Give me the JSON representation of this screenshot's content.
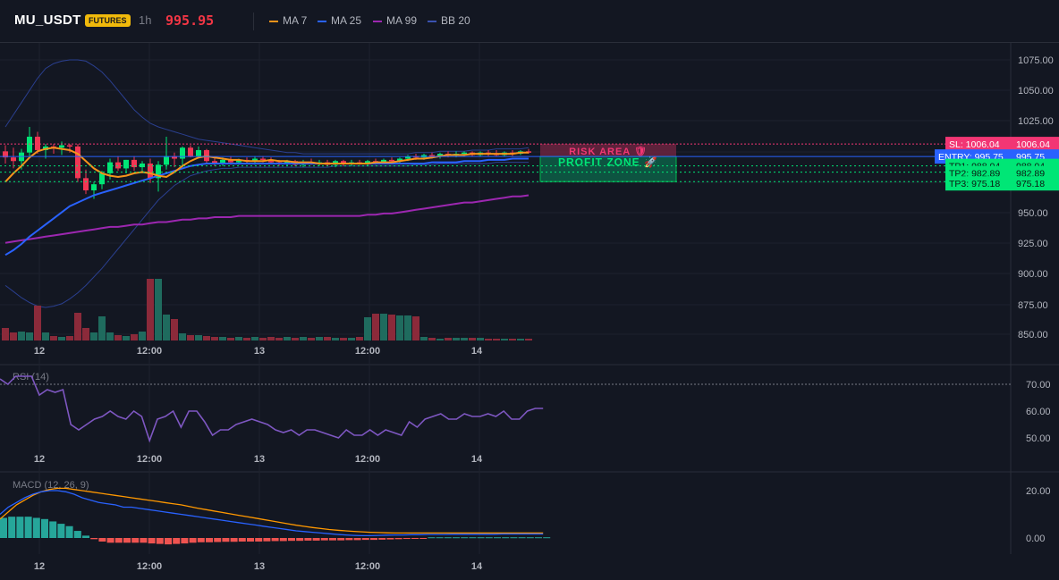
{
  "header": {
    "symbol": "MU_USDT",
    "badge": "FUTURES",
    "timeframe": "1h",
    "price": "995.95",
    "legend": [
      {
        "label": "MA 7",
        "color": "#f7931a"
      },
      {
        "label": "MA 25",
        "color": "#2962ff"
      },
      {
        "label": "MA 99",
        "color": "#9c27b0"
      },
      {
        "label": "BB 20",
        "color": "#2a3f8f"
      }
    ]
  },
  "price_axis": [
    "1075.00",
    "1050.00",
    "1025.00",
    "1000.00",
    "975.00",
    "950.00",
    "925.00",
    "900.00",
    "875.00",
    "850.00"
  ],
  "time_axis": [
    "12",
    "12:00",
    "13",
    "12:00",
    "14"
  ],
  "levels": {
    "sl": {
      "label": "SL: 1006.04",
      "value": "1006.04",
      "price": 1006.04,
      "color": "#f23674"
    },
    "entry": {
      "label": "ENTRY: 995.75",
      "value": "995.75",
      "price": 995.75,
      "color": "#2962ff"
    },
    "tp": [
      {
        "label": "TP1: 988.04",
        "value": "988.04",
        "price": 988.04
      },
      {
        "label": "TP2: 982.89",
        "value": "982.89",
        "price": 982.89
      },
      {
        "label": "TP3: 975.18",
        "value": "975.18",
        "price": 975.18
      }
    ],
    "tp_color": "#00e676"
  },
  "zones": {
    "risk_label": "RISK AREA 🛡",
    "profit_label": "PROFIT ZONE 🚀"
  },
  "rsi": {
    "title": "RSI (14)",
    "axis": [
      "70.00",
      "60.00",
      "50.00"
    ],
    "overbought": 70,
    "values": [
      72,
      70,
      73,
      73,
      73,
      66,
      68,
      67,
      68,
      55,
      53,
      55,
      57,
      58,
      60,
      58,
      57,
      60,
      58,
      49,
      57,
      58,
      60,
      54,
      60,
      60,
      56,
      51,
      53,
      53,
      55,
      56,
      57,
      56,
      55,
      53,
      52,
      53,
      51,
      53,
      53,
      52,
      51,
      50,
      53,
      51,
      51,
      53,
      51,
      53,
      52,
      51,
      56,
      54,
      57,
      58,
      59,
      57,
      57,
      59,
      58,
      58,
      59,
      58,
      60,
      57,
      57,
      60,
      61,
      61
    ]
  },
  "macd": {
    "title": "MACD (12, 26, 9)",
    "axis": [
      "20.00",
      "0.00"
    ],
    "macd_line": [
      10,
      13,
      15,
      17,
      18.5,
      19.5,
      20,
      20,
      19.5,
      18.5,
      17,
      16,
      15,
      14.5,
      14,
      13,
      13,
      12.5,
      12,
      11.5,
      11,
      10.5,
      10,
      9.5,
      9,
      8.5,
      8,
      7.5,
      7,
      6.5,
      6,
      5.5,
      5,
      4.5,
      4,
      3.5,
      3,
      2.7,
      2.4,
      2.1,
      1.8,
      1.5,
      1.3,
      1.1,
      1,
      1,
      1.1,
      1.2,
      1.3,
      1.3,
      1.4,
      1.4,
      1.5,
      1.5,
      1.5,
      1.6,
      1.6,
      1.6,
      1.6,
      1.6,
      1.6,
      1.7,
      1.7,
      1.7,
      1.7,
      1.7,
      1.7
    ],
    "signal_line": [
      8,
      11,
      14,
      16,
      18,
      19.5,
      20.5,
      21,
      21,
      20.5,
      20,
      19.5,
      19,
      18.5,
      18,
      17.5,
      17,
      16.5,
      16,
      15.5,
      15,
      14.5,
      14,
      13.3,
      12.6,
      12,
      11.4,
      10.8,
      10.2,
      9.6,
      9,
      8.4,
      7.8,
      7.2,
      6.6,
      6,
      5.4,
      4.9,
      4.4,
      4,
      3.6,
      3.3,
      3,
      2.8,
      2.6,
      2.4,
      2.3,
      2.2,
      2.1,
      2.1,
      2.1,
      2.1,
      2.1,
      2.1,
      2.1,
      2.1,
      2.1,
      2.1,
      2.1,
      2.1,
      2.1,
      2.1,
      2.1,
      2.1,
      2.1,
      2.1,
      2.1
    ],
    "histogram": [
      8.5,
      9,
      9,
      9,
      8.5,
      8,
      7,
      6,
      5,
      3,
      1,
      -0.5,
      -1.5,
      -2,
      -2,
      -2,
      -2,
      -2,
      -2.3,
      -2.5,
      -2.7,
      -2.5,
      -2.3,
      -2,
      -1.8,
      -1.8,
      -1.7,
      -1.6,
      -1.6,
      -1.5,
      -1.5,
      -1.5,
      -1.4,
      -1.3,
      -1.3,
      -1.2,
      -1.2,
      -1.1,
      -1.1,
      -1,
      -1,
      -1,
      -0.9,
      -0.9,
      -0.8,
      -0.8,
      -0.7,
      -0.6,
      -0.5,
      -0.4,
      -0.3,
      -0.2,
      0.3,
      0.3,
      0.3,
      0.3,
      0.3,
      0.3,
      0.3,
      0.3,
      0.3,
      0.3,
      0.3,
      0.3,
      0.3,
      0.3,
      0.3
    ]
  },
  "chart_data": {
    "type": "candlestick",
    "ylim": [
      845,
      1085
    ],
    "candles": [
      {
        "o": 1000,
        "h": 1005,
        "l": 990,
        "c": 995
      },
      {
        "o": 995,
        "h": 1003,
        "l": 986,
        "c": 992
      },
      {
        "o": 992,
        "h": 1002,
        "l": 985,
        "c": 999
      },
      {
        "o": 999,
        "h": 1020,
        "l": 996,
        "c": 1012
      },
      {
        "o": 1012,
        "h": 1016,
        "l": 998,
        "c": 1001
      },
      {
        "o": 1001,
        "h": 1006,
        "l": 994,
        "c": 1004
      },
      {
        "o": 1004,
        "h": 1006,
        "l": 998,
        "c": 1003
      },
      {
        "o": 1003,
        "h": 1008,
        "l": 997,
        "c": 1005
      },
      {
        "o": 1005,
        "h": 1006,
        "l": 999,
        "c": 1004
      },
      {
        "o": 1004,
        "h": 1006,
        "l": 975,
        "c": 978
      },
      {
        "o": 978,
        "h": 985,
        "l": 965,
        "c": 968
      },
      {
        "o": 968,
        "h": 975,
        "l": 961,
        "c": 973
      },
      {
        "o": 973,
        "h": 984,
        "l": 969,
        "c": 982
      },
      {
        "o": 982,
        "h": 994,
        "l": 977,
        "c": 991
      },
      {
        "o": 991,
        "h": 996,
        "l": 984,
        "c": 986
      },
      {
        "o": 986,
        "h": 993,
        "l": 982,
        "c": 993
      },
      {
        "o": 993,
        "h": 996,
        "l": 984,
        "c": 987
      },
      {
        "o": 987,
        "h": 992,
        "l": 982,
        "c": 990
      },
      {
        "o": 990,
        "h": 994,
        "l": 974,
        "c": 978
      },
      {
        "o": 978,
        "h": 992,
        "l": 967,
        "c": 989
      },
      {
        "o": 989,
        "h": 1012,
        "l": 985,
        "c": 996
      },
      {
        "o": 996,
        "h": 999,
        "l": 987,
        "c": 994
      },
      {
        "o": 994,
        "h": 1004,
        "l": 987,
        "c": 1003
      },
      {
        "o": 1003,
        "h": 1005,
        "l": 995,
        "c": 996
      },
      {
        "o": 996,
        "h": 1004,
        "l": 994,
        "c": 1001
      },
      {
        "o": 1001,
        "h": 1002,
        "l": 990,
        "c": 992
      },
      {
        "o": 992,
        "h": 995,
        "l": 988,
        "c": 990
      },
      {
        "o": 990,
        "h": 995,
        "l": 988,
        "c": 993
      },
      {
        "o": 993,
        "h": 996,
        "l": 989,
        "c": 991
      },
      {
        "o": 991,
        "h": 994,
        "l": 989,
        "c": 993
      },
      {
        "o": 993,
        "h": 995,
        "l": 990,
        "c": 992
      },
      {
        "o": 992,
        "h": 996,
        "l": 989,
        "c": 994
      },
      {
        "o": 994,
        "h": 996,
        "l": 991,
        "c": 993
      },
      {
        "o": 993,
        "h": 995,
        "l": 990,
        "c": 991
      },
      {
        "o": 991,
        "h": 993,
        "l": 988,
        "c": 990
      },
      {
        "o": 990,
        "h": 993,
        "l": 988,
        "c": 992
      },
      {
        "o": 992,
        "h": 993,
        "l": 988,
        "c": 989
      },
      {
        "o": 989,
        "h": 993,
        "l": 987,
        "c": 991
      },
      {
        "o": 991,
        "h": 994,
        "l": 989,
        "c": 990
      },
      {
        "o": 990,
        "h": 993,
        "l": 988,
        "c": 991
      },
      {
        "o": 991,
        "h": 993,
        "l": 988,
        "c": 989
      },
      {
        "o": 989,
        "h": 993,
        "l": 987,
        "c": 992
      },
      {
        "o": 992,
        "h": 993,
        "l": 988,
        "c": 990
      },
      {
        "o": 990,
        "h": 993,
        "l": 988,
        "c": 991
      },
      {
        "o": 991,
        "h": 993,
        "l": 989,
        "c": 990
      },
      {
        "o": 990,
        "h": 993,
        "l": 988,
        "c": 992
      },
      {
        "o": 992,
        "h": 994,
        "l": 989,
        "c": 991
      },
      {
        "o": 991,
        "h": 994,
        "l": 990,
        "c": 993
      },
      {
        "o": 993,
        "h": 995,
        "l": 990,
        "c": 992
      },
      {
        "o": 992,
        "h": 995,
        "l": 990,
        "c": 994
      },
      {
        "o": 994,
        "h": 997,
        "l": 992,
        "c": 996
      },
      {
        "o": 996,
        "h": 998,
        "l": 993,
        "c": 995
      },
      {
        "o": 995,
        "h": 998,
        "l": 993,
        "c": 997
      },
      {
        "o": 997,
        "h": 999,
        "l": 994,
        "c": 996
      },
      {
        "o": 996,
        "h": 999,
        "l": 994,
        "c": 998
      },
      {
        "o": 998,
        "h": 1000,
        "l": 995,
        "c": 997
      },
      {
        "o": 997,
        "h": 1000,
        "l": 995,
        "c": 998
      },
      {
        "o": 998,
        "h": 1000,
        "l": 996,
        "c": 999
      },
      {
        "o": 999,
        "h": 1000,
        "l": 996,
        "c": 997
      },
      {
        "o": 997,
        "h": 1000,
        "l": 996,
        "c": 999
      },
      {
        "o": 999,
        "h": 1001,
        "l": 996,
        "c": 998
      },
      {
        "o": 998,
        "h": 1001,
        "l": 996,
        "c": 997
      },
      {
        "o": 997,
        "h": 1000,
        "l": 996,
        "c": 999
      },
      {
        "o": 999,
        "h": 1001,
        "l": 996,
        "c": 998
      },
      {
        "o": 998,
        "h": 1001,
        "l": 997,
        "c": 1000
      },
      {
        "o": 1000,
        "h": 1002,
        "l": 998,
        "c": 999
      }
    ],
    "ma7": [
      975,
      982,
      988,
      995,
      1000,
      1002,
      1003,
      1002,
      1001,
      998,
      992,
      986,
      982,
      980,
      979,
      980,
      982,
      983,
      982,
      980,
      979,
      983,
      988,
      992,
      995,
      996,
      995,
      994,
      993,
      993,
      992,
      992,
      992,
      993,
      992,
      992,
      991,
      991,
      991,
      990,
      990,
      990,
      990,
      990,
      990,
      990,
      991,
      991,
      991,
      992,
      993,
      994,
      994,
      995,
      996,
      997,
      997,
      997,
      998,
      998,
      998,
      998,
      998,
      998,
      999,
      999
    ],
    "ma25": [
      915,
      919,
      924,
      930,
      935,
      940,
      945,
      950,
      955,
      958,
      961,
      964,
      966,
      968,
      970,
      972,
      974,
      976,
      978,
      980,
      982,
      984,
      986,
      988,
      989,
      990,
      990,
      990,
      990,
      990,
      990,
      990,
      990,
      990,
      990,
      990,
      990,
      990,
      990,
      990,
      990,
      990,
      990,
      990,
      990,
      990,
      990,
      990,
      990,
      990,
      990,
      990,
      990,
      991,
      991,
      991,
      991,
      992,
      992,
      992,
      993,
      993,
      993,
      994,
      994,
      994
    ],
    "ma99": [
      925,
      926,
      927,
      928,
      929,
      930,
      931,
      932,
      933,
      934,
      935,
      936,
      937,
      938,
      938,
      939,
      940,
      940,
      941,
      942,
      942,
      943,
      944,
      944,
      945,
      945,
      946,
      946,
      946,
      947,
      947,
      947,
      947,
      947,
      947,
      947,
      947,
      947,
      947,
      947,
      947,
      947,
      947,
      947,
      947,
      948,
      948,
      949,
      949,
      950,
      951,
      952,
      953,
      954,
      955,
      956,
      957,
      958,
      958,
      959,
      960,
      961,
      962,
      963,
      963,
      964
    ],
    "bb_upper": [
      1020,
      1030,
      1040,
      1050,
      1060,
      1068,
      1072,
      1074,
      1075,
      1075,
      1074,
      1070,
      1065,
      1058,
      1050,
      1042,
      1034,
      1028,
      1023,
      1020,
      1018,
      1016,
      1014,
      1012,
      1010,
      1009,
      1008,
      1007,
      1006,
      1005,
      1004,
      1003,
      1002,
      1001,
      1000,
      999,
      999,
      998,
      998,
      998,
      998,
      998,
      998,
      998,
      998,
      998,
      998,
      998,
      998,
      998,
      998,
      999,
      999,
      999,
      1000,
      1000,
      1000,
      1000,
      1001,
      1001,
      1001,
      1002,
      1002,
      1002,
      1002,
      1003
    ],
    "bb_lower": [
      890,
      885,
      880,
      876,
      873,
      872,
      873,
      875,
      879,
      884,
      890,
      897,
      904,
      912,
      920,
      928,
      936,
      944,
      952,
      960,
      966,
      972,
      976,
      980,
      982,
      984,
      985,
      986,
      986,
      987,
      987,
      987,
      987,
      987,
      987,
      987,
      987,
      987,
      987,
      987,
      987,
      988,
      988,
      988,
      988,
      988,
      988,
      988,
      988,
      988,
      988,
      989,
      989,
      989,
      990,
      990,
      990,
      990,
      990,
      990,
      990,
      991,
      991,
      991,
      991,
      991
    ],
    "volume": [
      14,
      9,
      10,
      9,
      39,
      9,
      5,
      4,
      5,
      31,
      14,
      9,
      27,
      9,
      6,
      5,
      7,
      10,
      69,
      69,
      29,
      24,
      8,
      6,
      6,
      5,
      4,
      4,
      3,
      4,
      3,
      4,
      3,
      4,
      3,
      4,
      3,
      4,
      3,
      4,
      4,
      3,
      3,
      3,
      4,
      26,
      30,
      30,
      29,
      28,
      28,
      27,
      4,
      3,
      2,
      3,
      3,
      3,
      3,
      3,
      2,
      2,
      2,
      2,
      2,
      2
    ]
  }
}
